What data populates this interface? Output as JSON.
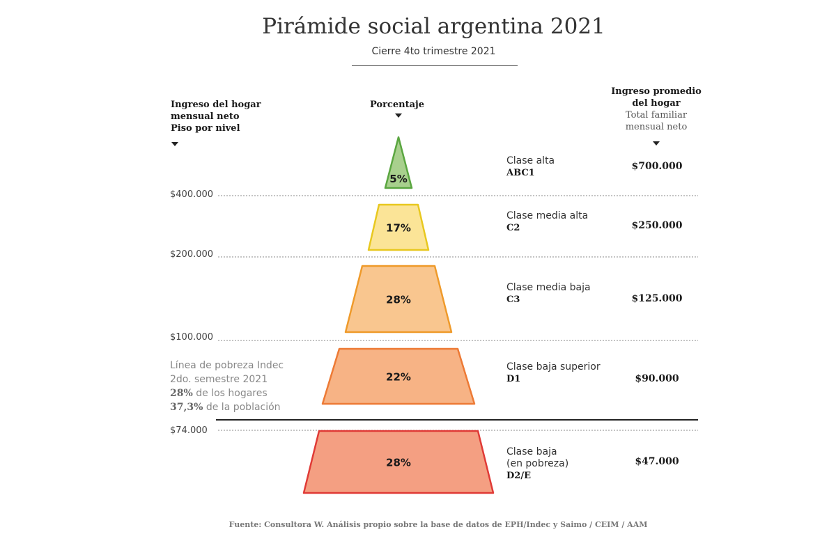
{
  "title": "Pirámide social argentina 2021",
  "subtitle": "Cierre 4to trimestre 2021",
  "headers": {
    "left": [
      "Ingreso del hogar",
      "mensual neto",
      "Piso por nivel"
    ],
    "middle": "Porcentaje",
    "right_bold": [
      "Ingreso promedio",
      "del hogar"
    ],
    "right_light": [
      "Total familiar",
      "mensual neto"
    ]
  },
  "poverty_note": {
    "line1": "Línea de pobreza Indec",
    "line2": "2do. semestre 2021",
    "households_value": "28%",
    "households_text": " de los hogares",
    "population_value": "37,3%",
    "population_text": " de la población"
  },
  "source": "Fuente: Consultora W. Análisis propio sobre la base de datos de EPH/Indec y Saimo  / CEIM / AAM",
  "chart_data": {
    "type": "pyramid",
    "title": "Pirámide social argentina 2021",
    "subtitle": "Cierre 4to trimestre 2021",
    "income_floors": [
      "$400.000",
      "$200.000",
      "$100.000",
      "$74.000"
    ],
    "levels": [
      {
        "class": "Clase alta",
        "code": "ABC1",
        "percent": 5,
        "label": "5%",
        "avg_income": "$700.000",
        "fill": "#a8d08d",
        "stroke": "#5aa640"
      },
      {
        "class": "Clase media alta",
        "code": "C2",
        "percent": 17,
        "label": "17%",
        "avg_income": "$250.000",
        "fill": "#fbe497",
        "stroke": "#e8c81f"
      },
      {
        "class": "Clase media baja",
        "code": "C3",
        "percent": 28,
        "label": "28%",
        "avg_income": "$125.000",
        "fill": "#f9c68f",
        "stroke": "#ef9a2a"
      },
      {
        "class": "Clase baja superior",
        "code": "D1",
        "percent": 22,
        "label": "22%",
        "avg_income": "$90.000",
        "fill": "#f7b385",
        "stroke": "#ed7a35"
      },
      {
        "class": "Clase baja",
        "class_line2": "(en pobreza)",
        "code": "D2/E",
        "percent": 28,
        "label": "28%",
        "avg_income": "$47.000",
        "fill": "#f49f82",
        "stroke": "#e03a36"
      }
    ]
  }
}
